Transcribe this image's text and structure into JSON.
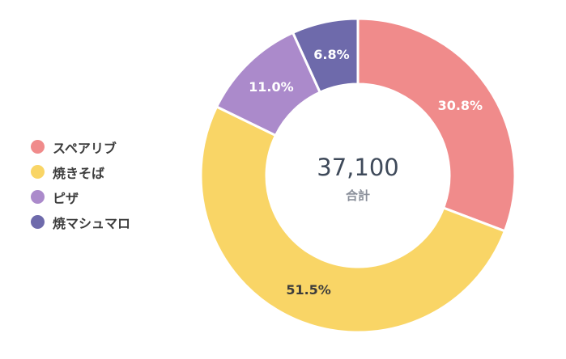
{
  "chart_data": {
    "type": "pie",
    "total": "37,100",
    "total_caption": "合計",
    "slices": [
      {
        "name": "スペアリブ",
        "percent": 30.8,
        "label": "30.8%",
        "color": "#f08b8b"
      },
      {
        "name": "焼きそば",
        "percent": 51.5,
        "label": "51.5%",
        "color": "#f9d566"
      },
      {
        "name": "ピザ",
        "percent": 11.0,
        "label": "11.0%",
        "color": "#ab8acb"
      },
      {
        "name": "焼マシュマロ",
        "percent": 6.8,
        "label": "6.8%",
        "color": "#6e6aab"
      }
    ],
    "legend_position": "left"
  }
}
